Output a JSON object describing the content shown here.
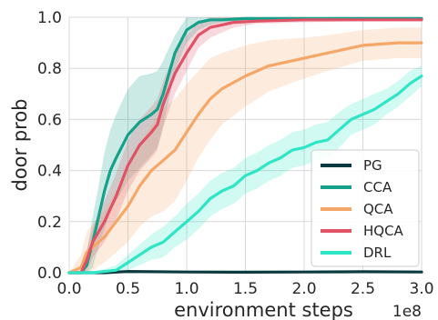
{
  "chart_data": {
    "type": "line",
    "xlabel": "environment steps",
    "ylabel": "door prob",
    "x_multiplier_label": "1e8",
    "xlim": [
      0.0,
      3.0
    ],
    "ylim": [
      0.0,
      1.0
    ],
    "x_ticks": [
      0.0,
      0.5,
      1.0,
      1.5,
      2.0,
      2.5,
      3.0
    ],
    "x_tick_labels": [
      "0.0",
      "0.5",
      "1.0",
      "1.5",
      "2.0",
      "2.5",
      "3.0"
    ],
    "y_ticks": [
      0.0,
      0.2,
      0.4,
      0.6,
      0.8,
      1.0
    ],
    "y_tick_labels": [
      "0.0",
      "0.2",
      "0.4",
      "0.6",
      "0.8",
      "1.0"
    ],
    "grid": true,
    "legend_position": "bottom-right",
    "series": [
      {
        "name": "PG",
        "color": "#0b3b40",
        "x": [
          0.0,
          0.3,
          0.5,
          1.0,
          1.5,
          2.0,
          2.5,
          3.0
        ],
        "y": [
          0.0,
          0.0,
          0.005,
          0.003,
          0.002,
          0.003,
          0.004,
          0.003
        ],
        "band": [
          0.0,
          0.0,
          0.0,
          0.0,
          0.0,
          0.0,
          0.0,
          0.0
        ]
      },
      {
        "name": "CCA",
        "color": "#15a08a",
        "x": [
          0.0,
          0.1,
          0.15,
          0.2,
          0.25,
          0.3,
          0.35,
          0.4,
          0.5,
          0.6,
          0.7,
          0.75,
          0.8,
          0.85,
          0.9,
          1.0,
          1.1,
          1.2,
          1.3,
          1.5,
          2.0,
          2.5,
          3.0
        ],
        "y": [
          0.0,
          0.0,
          0.03,
          0.12,
          0.22,
          0.32,
          0.4,
          0.45,
          0.54,
          0.59,
          0.62,
          0.64,
          0.7,
          0.78,
          0.86,
          0.95,
          0.98,
          0.99,
          0.99,
          0.995,
          0.995,
          0.995,
          0.995
        ],
        "band": [
          0.0,
          0.0,
          0.05,
          0.1,
          0.12,
          0.15,
          0.16,
          0.17,
          0.18,
          0.18,
          0.16,
          0.15,
          0.13,
          0.1,
          0.07,
          0.05,
          0.03,
          0.02,
          0.01,
          0.01,
          0.005,
          0.005,
          0.005
        ]
      },
      {
        "name": "QCA",
        "color": "#f5a768",
        "x": [
          0.0,
          0.1,
          0.15,
          0.2,
          0.3,
          0.4,
          0.5,
          0.6,
          0.7,
          0.8,
          0.9,
          1.0,
          1.1,
          1.2,
          1.3,
          1.5,
          1.7,
          2.0,
          2.2,
          2.5,
          2.8,
          3.0
        ],
        "y": [
          0.0,
          0.02,
          0.08,
          0.1,
          0.14,
          0.2,
          0.26,
          0.34,
          0.4,
          0.44,
          0.48,
          0.55,
          0.62,
          0.68,
          0.72,
          0.77,
          0.81,
          0.84,
          0.86,
          0.89,
          0.9,
          0.9
        ],
        "band": [
          0.0,
          0.05,
          0.08,
          0.09,
          0.1,
          0.12,
          0.14,
          0.16,
          0.18,
          0.2,
          0.2,
          0.19,
          0.17,
          0.16,
          0.14,
          0.12,
          0.1,
          0.08,
          0.07,
          0.06,
          0.06,
          0.06
        ]
      },
      {
        "name": "HQCA",
        "color": "#e05266",
        "x": [
          0.0,
          0.1,
          0.15,
          0.2,
          0.3,
          0.4,
          0.5,
          0.6,
          0.7,
          0.75,
          0.8,
          0.9,
          1.0,
          1.1,
          1.2,
          1.3,
          1.4,
          1.6,
          2.0,
          2.5,
          3.0
        ],
        "y": [
          0.0,
          0.0,
          0.05,
          0.12,
          0.2,
          0.3,
          0.42,
          0.5,
          0.55,
          0.58,
          0.66,
          0.78,
          0.86,
          0.93,
          0.96,
          0.97,
          0.98,
          0.985,
          0.99,
          0.99,
          0.99
        ],
        "band": [
          0.0,
          0.0,
          0.04,
          0.06,
          0.08,
          0.09,
          0.1,
          0.1,
          0.1,
          0.1,
          0.09,
          0.08,
          0.07,
          0.05,
          0.04,
          0.03,
          0.02,
          0.01,
          0.01,
          0.005,
          0.005
        ]
      },
      {
        "name": "DRL",
        "color": "#2ee6c5",
        "x": [
          0.0,
          0.2,
          0.4,
          0.5,
          0.6,
          0.7,
          0.8,
          0.9,
          1.0,
          1.1,
          1.2,
          1.3,
          1.4,
          1.5,
          1.6,
          1.7,
          1.8,
          1.9,
          2.0,
          2.1,
          2.2,
          2.3,
          2.4,
          2.5,
          2.6,
          2.7,
          2.8,
          2.9,
          3.0
        ],
        "y": [
          0.0,
          0.0,
          0.01,
          0.04,
          0.07,
          0.1,
          0.12,
          0.16,
          0.2,
          0.24,
          0.29,
          0.32,
          0.34,
          0.38,
          0.4,
          0.43,
          0.45,
          0.48,
          0.49,
          0.51,
          0.52,
          0.56,
          0.6,
          0.62,
          0.64,
          0.67,
          0.7,
          0.74,
          0.77
        ],
        "band": [
          0.0,
          0.0,
          0.02,
          0.03,
          0.04,
          0.05,
          0.06,
          0.06,
          0.07,
          0.07,
          0.07,
          0.07,
          0.07,
          0.07,
          0.07,
          0.07,
          0.07,
          0.07,
          0.07,
          0.07,
          0.07,
          0.07,
          0.06,
          0.06,
          0.06,
          0.05,
          0.05,
          0.05,
          0.04
        ]
      }
    ]
  }
}
